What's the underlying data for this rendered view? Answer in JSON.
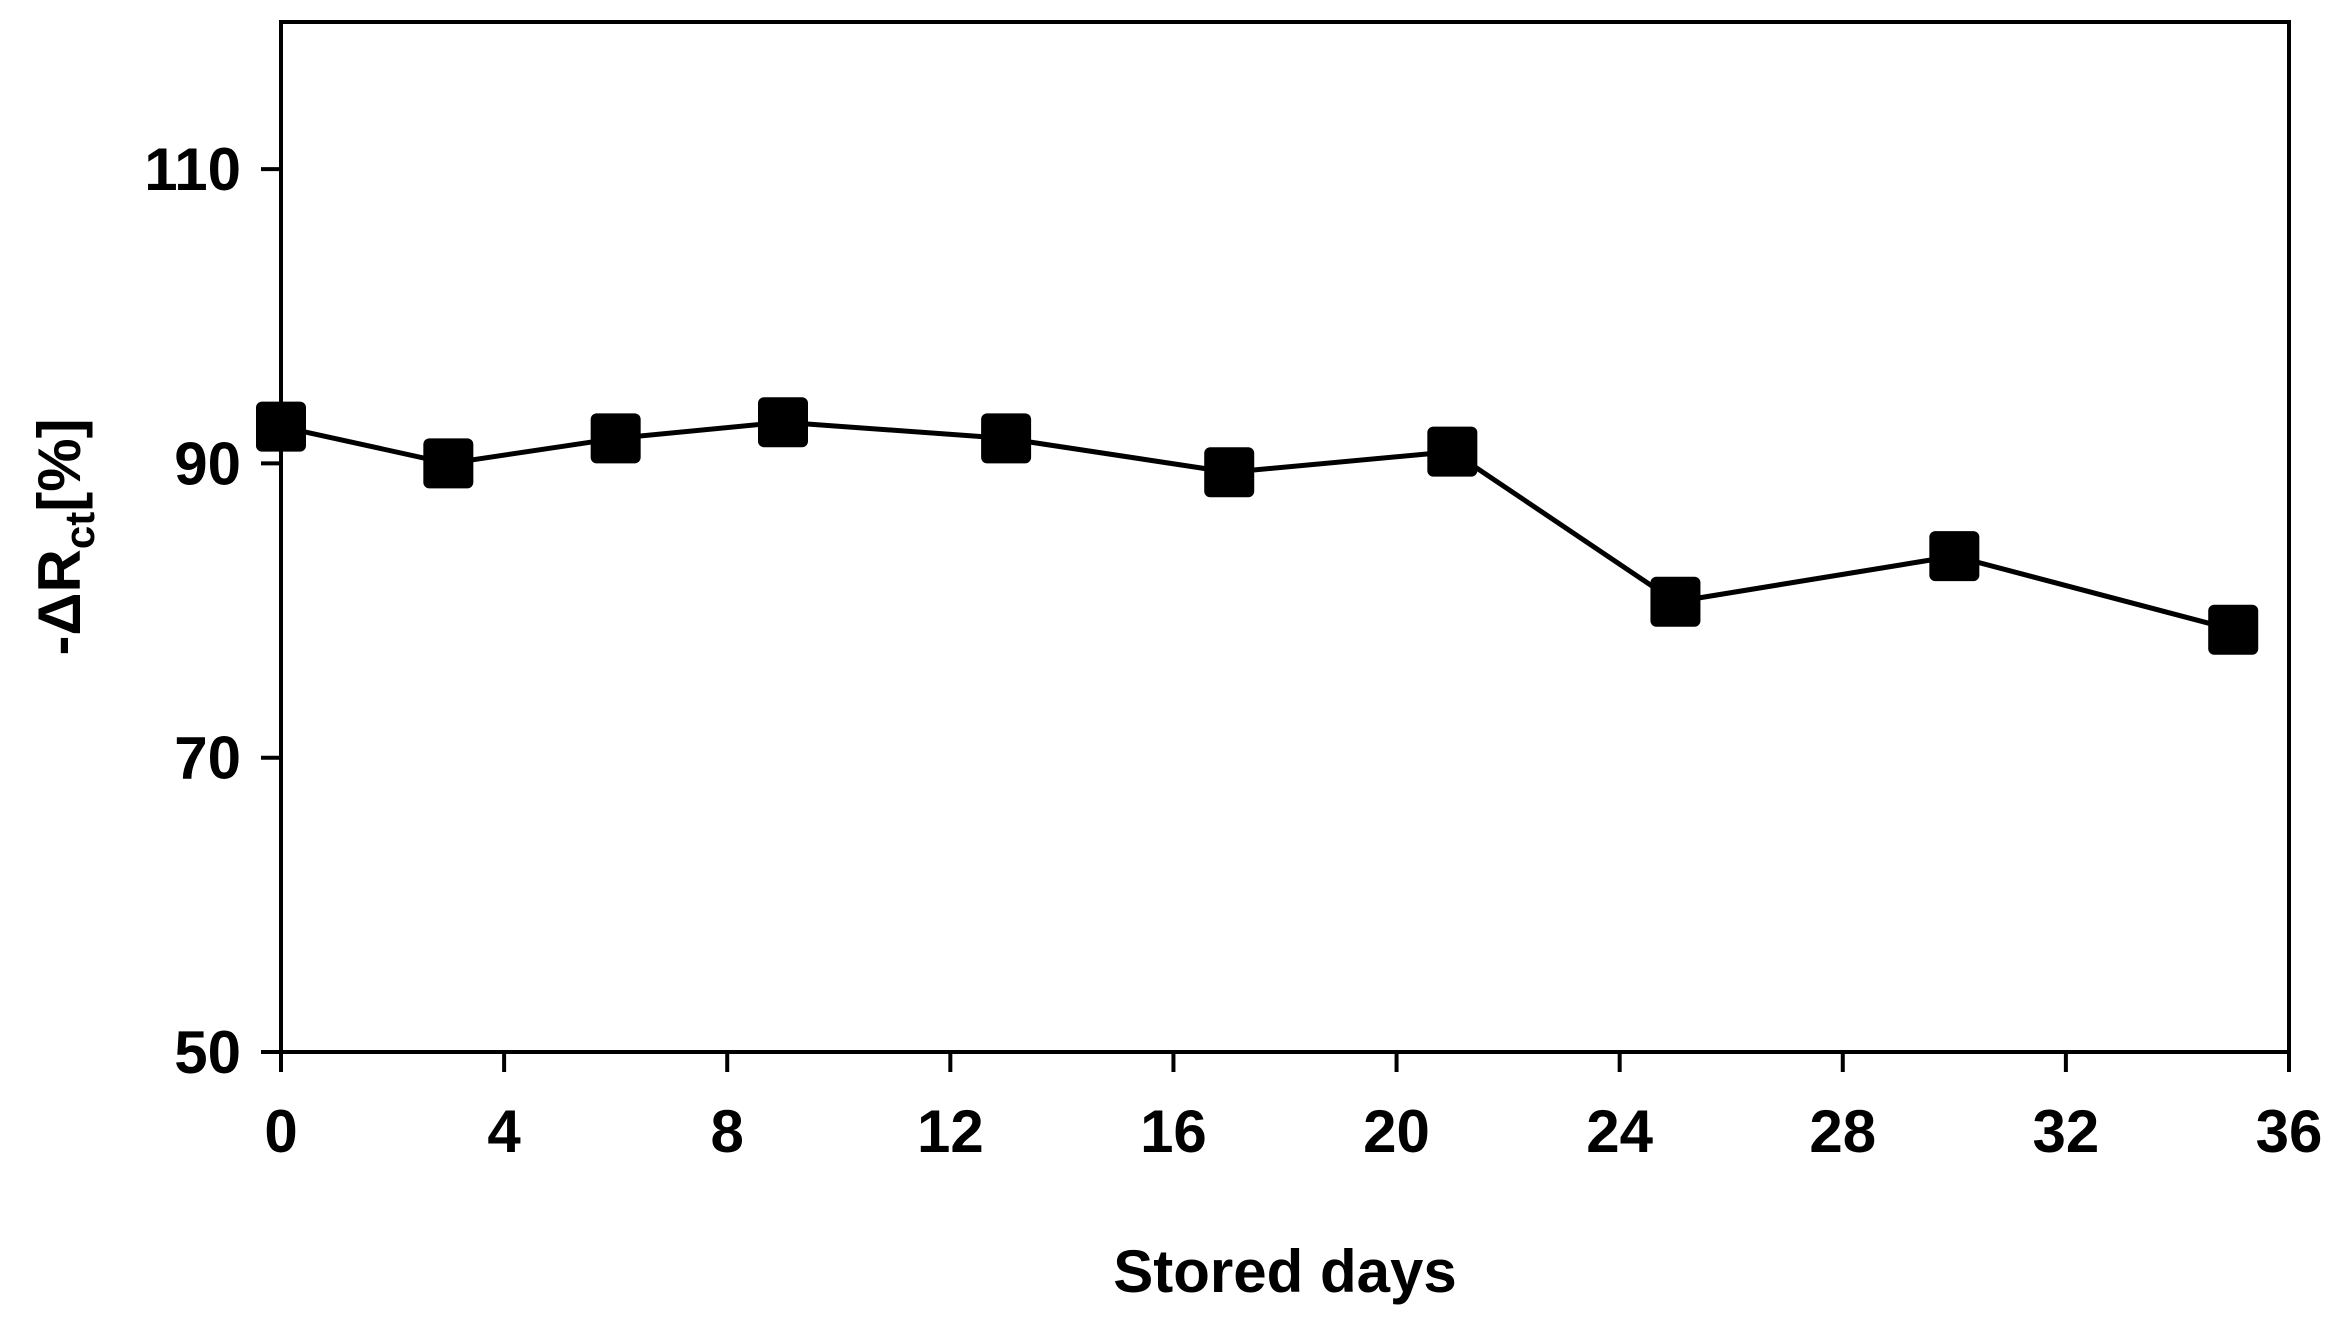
{
  "chart_data": {
    "type": "line",
    "title": "",
    "xlabel": "Stored days",
    "ylabel": {
      "prefix": "-ΔR",
      "subscript": "ct",
      "suffix": "[%]"
    },
    "xlim": [
      0,
      36
    ],
    "ylim": [
      50,
      120
    ],
    "x_ticks": [
      0,
      4,
      8,
      12,
      16,
      20,
      24,
      28,
      32,
      36
    ],
    "x_tick_labels": [
      "0",
      "4",
      "8",
      "12",
      "16",
      "20",
      "24",
      "28",
      "32",
      "36"
    ],
    "y_ticks": [
      50,
      70,
      90,
      110
    ],
    "y_tick_labels": [
      "50",
      "70",
      "90",
      "110"
    ],
    "grid": false,
    "legend": "none",
    "series": [
      {
        "marker": "square",
        "color": "#000000",
        "x": [
          0,
          3,
          6,
          9,
          13,
          17,
          21,
          25,
          30,
          35
        ],
        "y": [
          92.5,
          90.0,
          91.7,
          92.8,
          91.7,
          89.4,
          90.8,
          80.6,
          83.7,
          78.7
        ]
      }
    ]
  }
}
